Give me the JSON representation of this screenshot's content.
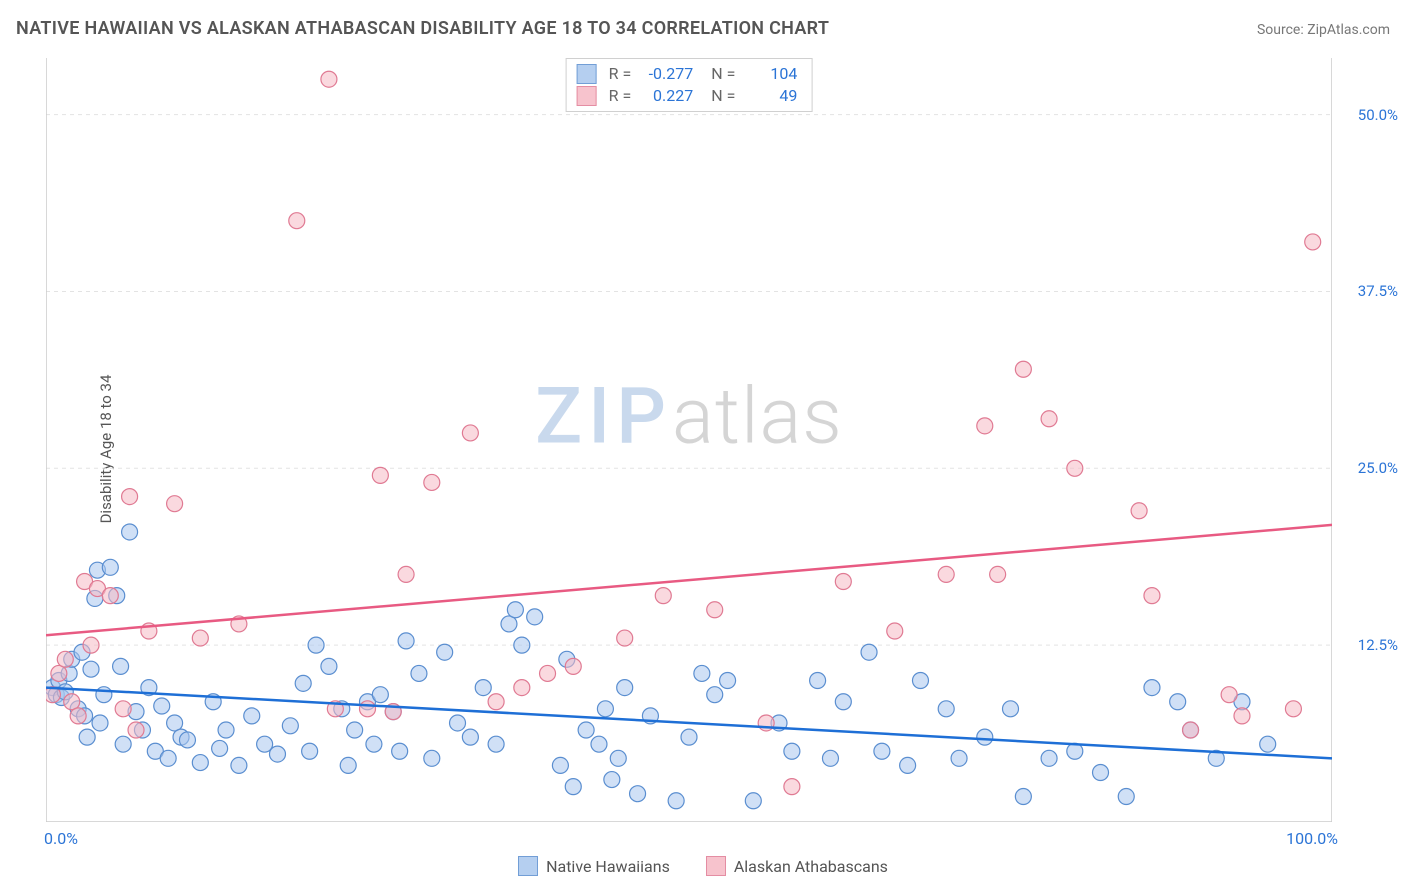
{
  "title": "NATIVE HAWAIIAN VS ALASKAN ATHABASCAN DISABILITY AGE 18 TO 34 CORRELATION CHART",
  "source": "Source: ZipAtlas.com",
  "ylabel": "Disability Age 18 to 34",
  "watermark_zip": "ZIP",
  "watermark_atlas": "atlas",
  "chart": {
    "type": "scatter",
    "xlim": [
      0,
      100
    ],
    "ylim": [
      0,
      54
    ],
    "xticks": [
      0,
      100
    ],
    "xticklabels": [
      "0.0%",
      "100.0%"
    ],
    "yticks": [
      12.5,
      25.0,
      37.5,
      50.0
    ],
    "yticklabels": [
      "12.5%",
      "25.0%",
      "37.5%",
      "50.0%"
    ],
    "minor_xtick_step": 5,
    "background_color": "#ffffff",
    "grid_color": "#e3e3e3",
    "axis_color": "#cccccc",
    "marker_radius": 8,
    "series": [
      {
        "id": "hawaiians",
        "name": "Native Hawaiians",
        "fill": "#a9c7ee",
        "fill_opacity": 0.55,
        "stroke": "#5a8ed0",
        "line_color": "#1e6fd6",
        "line_width": 2.5,
        "R": "-0.277",
        "N": "104",
        "fit": {
          "x1": 0,
          "y1": 9.5,
          "x2": 100,
          "y2": 4.5
        },
        "points": [
          [
            0.5,
            9.5
          ],
          [
            0.8,
            9.0
          ],
          [
            1.0,
            10.0
          ],
          [
            1.2,
            8.8
          ],
          [
            1.5,
            9.2
          ],
          [
            1.8,
            10.5
          ],
          [
            2.0,
            11.5
          ],
          [
            2.5,
            8.0
          ],
          [
            2.8,
            12.0
          ],
          [
            3.0,
            7.5
          ],
          [
            3.2,
            6.0
          ],
          [
            3.5,
            10.8
          ],
          [
            3.8,
            15.8
          ],
          [
            4.0,
            17.8
          ],
          [
            4.2,
            7.0
          ],
          [
            4.5,
            9.0
          ],
          [
            5.0,
            18.0
          ],
          [
            5.5,
            16.0
          ],
          [
            5.8,
            11.0
          ],
          [
            6.0,
            5.5
          ],
          [
            6.5,
            20.5
          ],
          [
            7.0,
            7.8
          ],
          [
            7.5,
            6.5
          ],
          [
            8.0,
            9.5
          ],
          [
            8.5,
            5.0
          ],
          [
            9.0,
            8.2
          ],
          [
            9.5,
            4.5
          ],
          [
            10.0,
            7.0
          ],
          [
            10.5,
            6.0
          ],
          [
            11.0,
            5.8
          ],
          [
            12.0,
            4.2
          ],
          [
            13.0,
            8.5
          ],
          [
            13.5,
            5.2
          ],
          [
            14.0,
            6.5
          ],
          [
            15.0,
            4.0
          ],
          [
            16.0,
            7.5
          ],
          [
            17.0,
            5.5
          ],
          [
            18.0,
            4.8
          ],
          [
            19.0,
            6.8
          ],
          [
            20.0,
            9.8
          ],
          [
            20.5,
            5.0
          ],
          [
            21.0,
            12.5
          ],
          [
            22.0,
            11.0
          ],
          [
            23.0,
            8.0
          ],
          [
            23.5,
            4.0
          ],
          [
            24.0,
            6.5
          ],
          [
            25.0,
            8.5
          ],
          [
            25.5,
            5.5
          ],
          [
            26.0,
            9.0
          ],
          [
            27.0,
            7.8
          ],
          [
            27.5,
            5.0
          ],
          [
            28.0,
            12.8
          ],
          [
            29.0,
            10.5
          ],
          [
            30.0,
            4.5
          ],
          [
            31.0,
            12.0
          ],
          [
            32.0,
            7.0
          ],
          [
            33.0,
            6.0
          ],
          [
            34.0,
            9.5
          ],
          [
            35.0,
            5.5
          ],
          [
            36.0,
            14.0
          ],
          [
            36.5,
            15.0
          ],
          [
            37.0,
            12.5
          ],
          [
            38.0,
            14.5
          ],
          [
            40.0,
            4.0
          ],
          [
            40.5,
            11.5
          ],
          [
            41.0,
            2.5
          ],
          [
            42.0,
            6.5
          ],
          [
            43.0,
            5.5
          ],
          [
            43.5,
            8.0
          ],
          [
            44.0,
            3.0
          ],
          [
            44.5,
            4.5
          ],
          [
            45.0,
            9.5
          ],
          [
            46.0,
            2.0
          ],
          [
            47.0,
            7.5
          ],
          [
            49.0,
            1.5
          ],
          [
            50.0,
            6.0
          ],
          [
            51.0,
            10.5
          ],
          [
            52.0,
            9.0
          ],
          [
            53.0,
            10.0
          ],
          [
            55.0,
            1.5
          ],
          [
            57.0,
            7.0
          ],
          [
            58.0,
            5.0
          ],
          [
            60.0,
            10.0
          ],
          [
            61.0,
            4.5
          ],
          [
            62.0,
            8.5
          ],
          [
            64.0,
            12.0
          ],
          [
            65.0,
            5.0
          ],
          [
            67.0,
            4.0
          ],
          [
            68.0,
            10.0
          ],
          [
            70.0,
            8.0
          ],
          [
            71.0,
            4.5
          ],
          [
            73.0,
            6.0
          ],
          [
            75.0,
            8.0
          ],
          [
            76.0,
            1.8
          ],
          [
            78.0,
            4.5
          ],
          [
            80.0,
            5.0
          ],
          [
            82.0,
            3.5
          ],
          [
            84.0,
            1.8
          ],
          [
            86.0,
            9.5
          ],
          [
            88.0,
            8.5
          ],
          [
            91.0,
            4.5
          ],
          [
            89.0,
            6.5
          ],
          [
            93.0,
            8.5
          ],
          [
            95.0,
            5.5
          ]
        ]
      },
      {
        "id": "athabascans",
        "name": "Alaskan Athabascans",
        "fill": "#f6b9c5",
        "fill_opacity": 0.55,
        "stroke": "#e07a93",
        "line_color": "#e85a82",
        "line_width": 2.5,
        "R": "0.227",
        "N": "49",
        "fit": {
          "x1": 0,
          "y1": 13.2,
          "x2": 100,
          "y2": 21.0
        },
        "points": [
          [
            0.5,
            9.0
          ],
          [
            1.0,
            10.5
          ],
          [
            1.5,
            11.5
          ],
          [
            2.0,
            8.5
          ],
          [
            2.5,
            7.5
          ],
          [
            3.0,
            17.0
          ],
          [
            3.5,
            12.5
          ],
          [
            4.0,
            16.5
          ],
          [
            5.0,
            16.0
          ],
          [
            6.0,
            8.0
          ],
          [
            6.5,
            23.0
          ],
          [
            7.0,
            6.5
          ],
          [
            8.0,
            13.5
          ],
          [
            10.0,
            22.5
          ],
          [
            12.0,
            13.0
          ],
          [
            15.0,
            14.0
          ],
          [
            19.5,
            42.5
          ],
          [
            22.0,
            52.5
          ],
          [
            22.5,
            8.0
          ],
          [
            25.0,
            8.0
          ],
          [
            26.0,
            24.5
          ],
          [
            27.0,
            7.8
          ],
          [
            28.0,
            17.5
          ],
          [
            30.0,
            24.0
          ],
          [
            33.0,
            27.5
          ],
          [
            35.0,
            8.5
          ],
          [
            37.0,
            9.5
          ],
          [
            39.0,
            10.5
          ],
          [
            41.0,
            11.0
          ],
          [
            45.0,
            13.0
          ],
          [
            48.0,
            16.0
          ],
          [
            52.0,
            15.0
          ],
          [
            56.0,
            7.0
          ],
          [
            58.0,
            2.5
          ],
          [
            62.0,
            17.0
          ],
          [
            66.0,
            13.5
          ],
          [
            70.0,
            17.5
          ],
          [
            73.0,
            28.0
          ],
          [
            74.0,
            17.5
          ],
          [
            76.0,
            32.0
          ],
          [
            78.0,
            28.5
          ],
          [
            80.0,
            25.0
          ],
          [
            85.0,
            22.0
          ],
          [
            86.0,
            16.0
          ],
          [
            89.0,
            6.5
          ],
          [
            92.0,
            9.0
          ],
          [
            93.0,
            7.5
          ],
          [
            97.0,
            8.0
          ],
          [
            98.5,
            41.0
          ]
        ]
      }
    ]
  },
  "stats_labels": {
    "R": "R =",
    "N": "N ="
  }
}
